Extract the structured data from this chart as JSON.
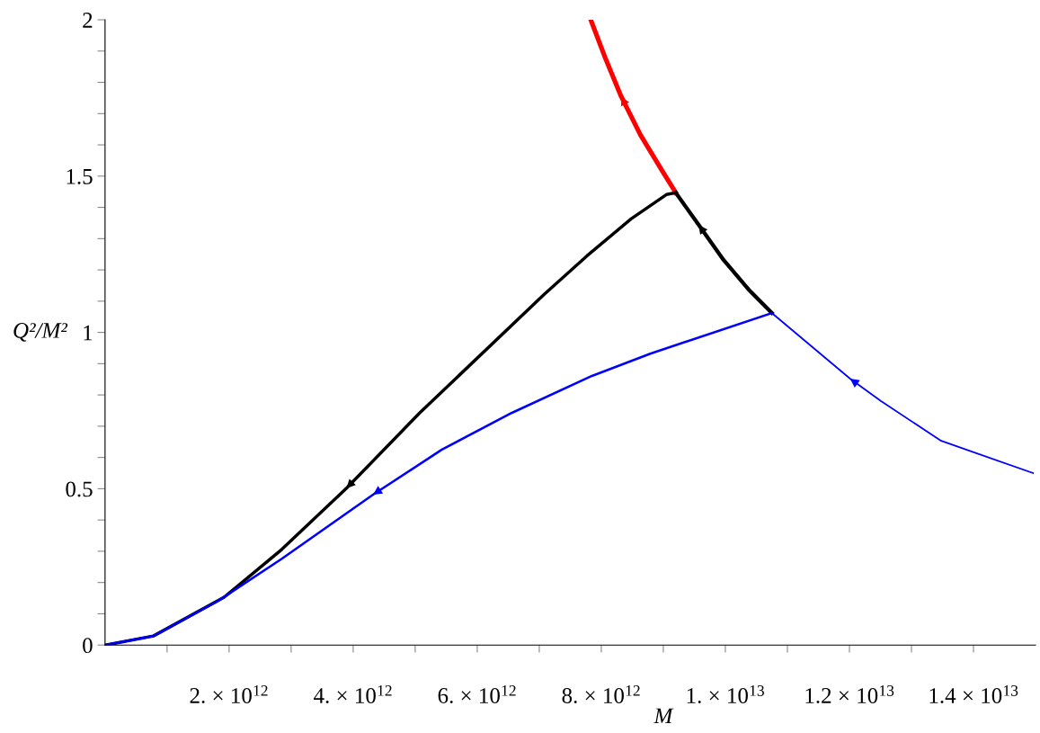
{
  "chart_data": {
    "type": "line",
    "xlabel": "M",
    "ylabel": "Q²/M²",
    "xlim": [
      0,
      15000000000000.0
    ],
    "ylim": [
      0,
      2
    ],
    "xticks": [
      {
        "value": 1000000000000.0,
        "label": null
      },
      {
        "value": 2000000000000.0,
        "label": "2. × 10$^{12}$"
      },
      {
        "value": 3000000000000.0,
        "label": null
      },
      {
        "value": 4000000000000.0,
        "label": "4. × 10$^{12}$"
      },
      {
        "value": 5000000000000.0,
        "label": null
      },
      {
        "value": 6000000000000.0,
        "label": "6. × 10$^{12}$"
      },
      {
        "value": 7000000000000.0,
        "label": null
      },
      {
        "value": 8000000000000.0,
        "label": "8. × 10$^{12}$"
      },
      {
        "value": 9000000000000.0,
        "label": null
      },
      {
        "value": 10000000000000.0,
        "label": "1. × 10$^{13}$"
      },
      {
        "value": 11000000000000.0,
        "label": null
      },
      {
        "value": 12000000000000.0,
        "label": "1.2 × 10$^{13}$"
      },
      {
        "value": 13000000000000.0,
        "label": null
      },
      {
        "value": 14000000000000.0,
        "label": "1.4 × 10$^{13}$"
      }
    ],
    "yticks": [
      0,
      {
        "value": 0.1,
        "label": null
      },
      {
        "value": 0.2,
        "label": null
      },
      {
        "value": 0.3,
        "label": null
      },
      {
        "value": 0.4,
        "label": null
      },
      0.5,
      {
        "value": 0.6,
        "label": null
      },
      {
        "value": 0.7,
        "label": null
      },
      {
        "value": 0.8,
        "label": null
      },
      {
        "value": 0.9,
        "label": null
      },
      1,
      {
        "value": 1.1,
        "label": null
      },
      {
        "value": 1.2,
        "label": null
      },
      {
        "value": 1.3,
        "label": null
      },
      {
        "value": 1.4,
        "label": null
      },
      1.5,
      {
        "value": 1.6,
        "label": null
      },
      {
        "value": 1.7,
        "label": null
      },
      {
        "value": 1.8,
        "label": null
      },
      {
        "value": 1.9,
        "label": null
      },
      2
    ],
    "grid": false,
    "legend": false,
    "marker": "none",
    "line_style": "solid",
    "series": [
      {
        "color": "#ff0000",
        "x": [
          9200000000000.0,
          8990000000000.0,
          8630000000000.0,
          8320000000000.0,
          8060000000000.0,
          7830000000000.0
        ],
        "values": [
          1.447,
          1.514,
          1.632,
          1.755,
          1.88,
          2.0
        ]
      },
      {
        "color": "#000000",
        "x": [
          10750000000000.0,
          10390000000000.0,
          9970000000000.0,
          9570000000000.0,
          9200000000000.0
        ],
        "values": [
          1.062,
          1.134,
          1.232,
          1.344,
          1.447
        ]
      },
      {
        "color": "#000000",
        "x": [
          9200000000000.0,
          9050000000000.0,
          8480000000000.0,
          7770000000000.0,
          7080000000000.0,
          5070000000000.0,
          3890000000000.0,
          2850000000000.0,
          1920000000000.0,
          780000000000.0,
          10000000000.0
        ],
        "values": [
          1.447,
          1.441,
          1.363,
          1.245,
          1.122,
          0.742,
          0.501,
          0.306,
          0.153,
          0.029,
          0
        ]
      },
      {
        "color": "#0000ff",
        "x": [
          10750000000000.0,
          8790000000000.0,
          7850000000000.0,
          6560000000000.0,
          5430000000000.0,
          4320000000000.0,
          2850000000000.0,
          1820000000000.0,
          780000000000.0,
          0.0
        ],
        "values": [
          1.062,
          0.932,
          0.861,
          0.743,
          0.625,
          0.481,
          0.276,
          0.141,
          0.029,
          0
        ]
      },
      {
        "color": "#0000ff",
        "x": [
          14960000000000.0,
          13480000000000.0,
          12510000000000.0,
          12010000000000.0,
          10750000000000.0
        ],
        "values": [
          0.55,
          0.653,
          0.78,
          0.852,
          1.062
        ]
      }
    ]
  }
}
